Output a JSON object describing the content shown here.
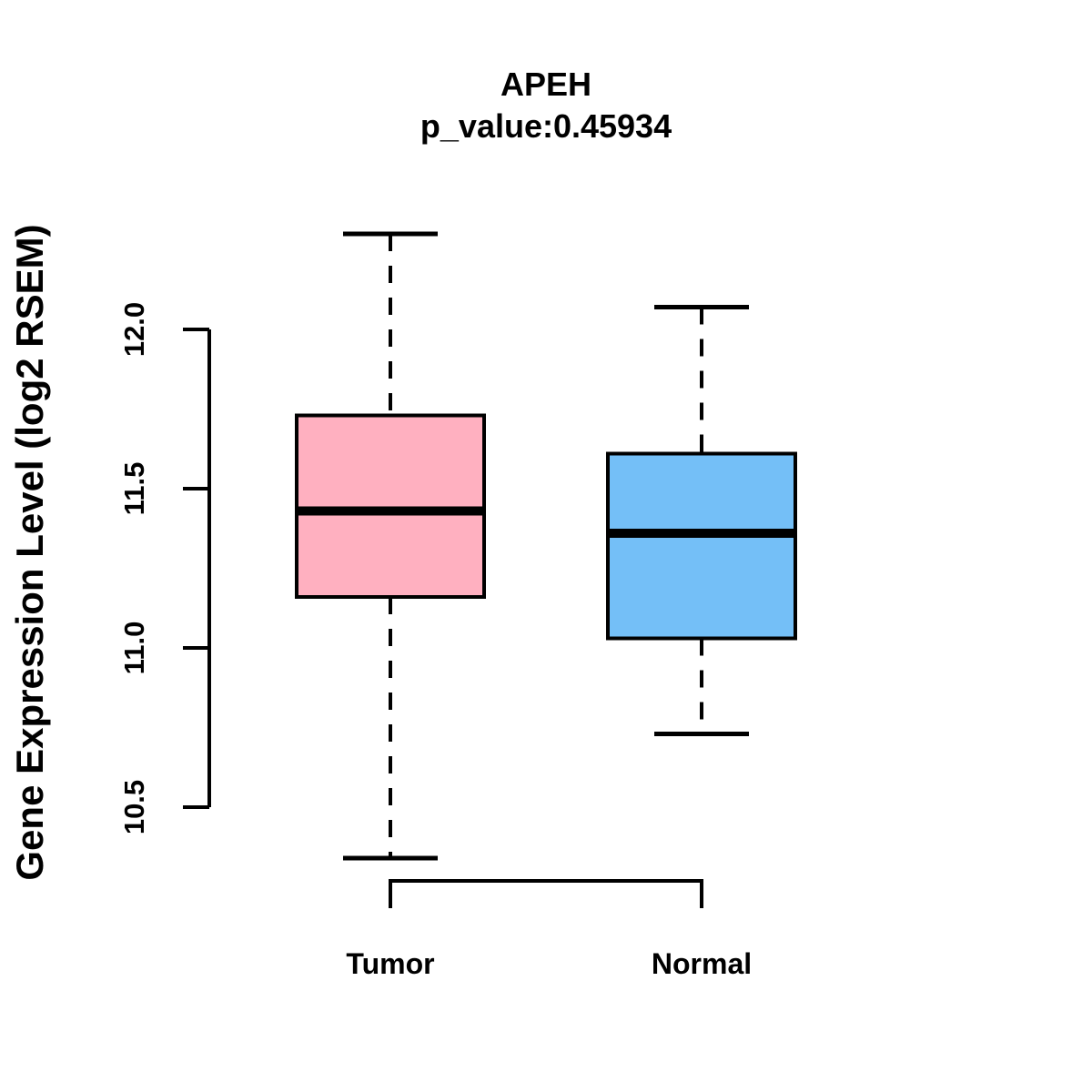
{
  "chart_data": {
    "type": "boxplot",
    "title": "APEH",
    "subtitle": "p_value:0.45934",
    "ylabel": "Gene Expression Level (log2 RSEM)",
    "categories": [
      "Tumor",
      "Normal"
    ],
    "ylim": [
      10.5,
      12.0
    ],
    "y_ticks": [
      {
        "value": 10.5,
        "label": "10.5"
      },
      {
        "value": 11.0,
        "label": "11.0"
      },
      {
        "value": 11.5,
        "label": "11.5"
      },
      {
        "value": 12.0,
        "label": "12.0"
      }
    ],
    "grid": false,
    "legend": "none",
    "colors": {
      "line": "#000000",
      "background": "#FFFFFF",
      "tumor_fill": "#FFB0C0",
      "normal_fill": "#74BFF7"
    },
    "series": [
      {
        "name": "Tumor",
        "fill_color": "#FFB0C0",
        "whisker_low": 10.34,
        "q1": 11.16,
        "median": 11.43,
        "q3": 11.73,
        "whisker_high": 12.3
      },
      {
        "name": "Normal",
        "fill_color": "#74BFF7",
        "whisker_low": 10.73,
        "q1": 11.03,
        "median": 11.36,
        "q3": 11.61,
        "whisker_high": 12.07
      }
    ]
  }
}
